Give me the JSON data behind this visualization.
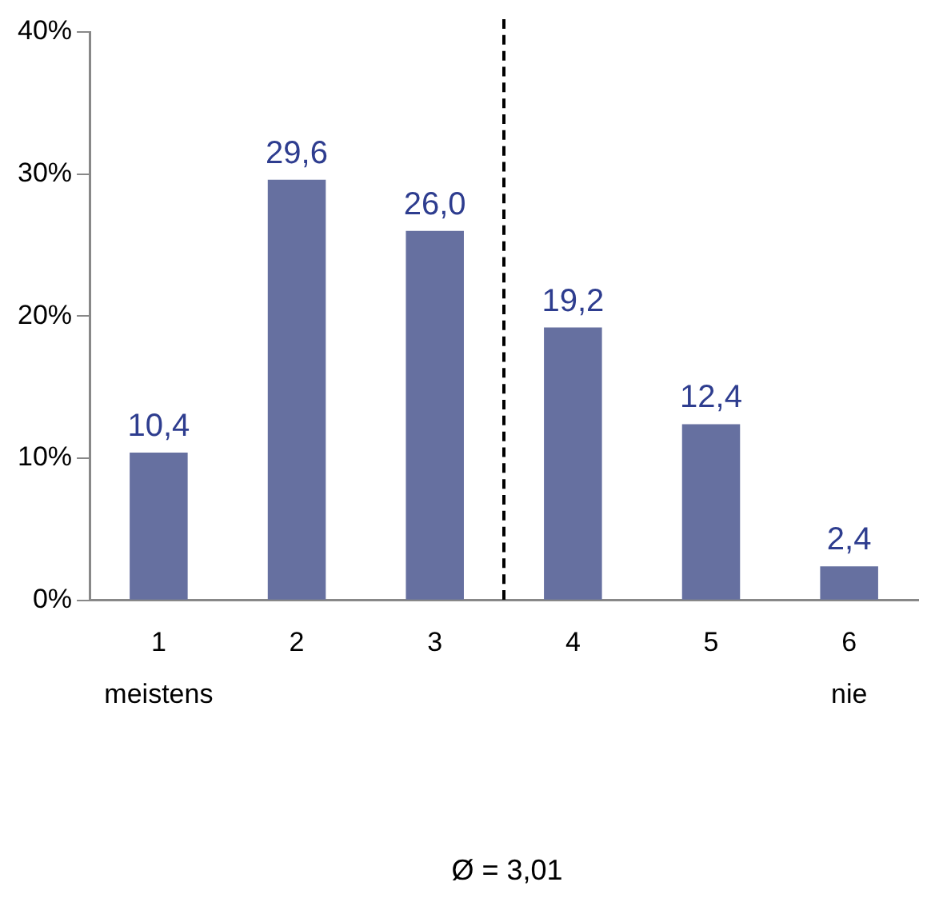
{
  "chart_data": {
    "type": "bar",
    "categories": [
      "1\nmeistens",
      "2",
      "3",
      "4",
      "5",
      "6\nnie"
    ],
    "values": [
      10.4,
      29.6,
      26.0,
      19.2,
      12.4,
      2.4
    ],
    "color": "#6670a0",
    "ylim": [
      0,
      40
    ],
    "yticks": [
      {
        "value": 0,
        "label": "0%"
      },
      {
        "value": 10,
        "label": "10%"
      },
      {
        "value": 20,
        "label": "20%"
      },
      {
        "value": 30,
        "label": "30%"
      },
      {
        "value": 40,
        "label": "40%"
      }
    ],
    "value_labels": [
      "10,4",
      "29,6",
      "26,0",
      "19,2",
      "12,4",
      "2,4"
    ],
    "grid": false,
    "legend": false,
    "annotations": [
      "Ø = 3,01"
    ]
  }
}
